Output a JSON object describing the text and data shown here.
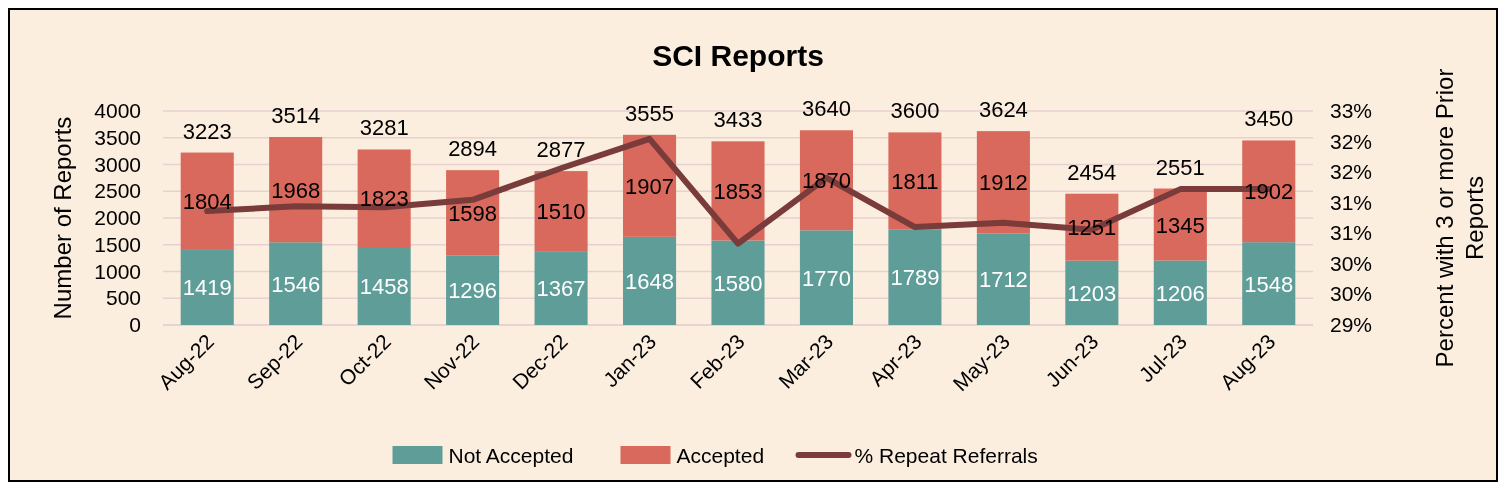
{
  "chart_data": {
    "type": "bar",
    "title": "SCI Reports",
    "ylabel": "Number of Reports",
    "y2label": "Percent with 3 or more Prior Reports",
    "categories": [
      "Aug-22",
      "Sep-22",
      "Oct-22",
      "Nov-22",
      "Dec-22",
      "Jan-23",
      "Feb-23",
      "Mar-23",
      "Apr-23",
      "May-23",
      "Jun-23",
      "Jul-23",
      "Aug-23"
    ],
    "stacked": true,
    "grid": "y",
    "legend": "bottom",
    "ylim": [
      0,
      4000
    ],
    "yticks": [
      0,
      500,
      1000,
      1500,
      2000,
      2500,
      3000,
      3500,
      4000
    ],
    "y2lim": [
      29,
      33
    ],
    "y2ticks": [
      {
        "value": 29,
        "label": "29%"
      },
      {
        "value": 29.571,
        "label": "30%"
      },
      {
        "value": 30.143,
        "label": "30%"
      },
      {
        "value": 30.714,
        "label": "31%"
      },
      {
        "value": 31.286,
        "label": "31%"
      },
      {
        "value": 31.857,
        "label": "32%"
      },
      {
        "value": 32.429,
        "label": "32%"
      },
      {
        "value": 33,
        "label": "33%"
      }
    ],
    "series": [
      {
        "name": "Not Accepted",
        "color": "#5f9e98",
        "values": [
          1419,
          1546,
          1458,
          1296,
          1367,
          1648,
          1580,
          1770,
          1789,
          1712,
          1203,
          1206,
          1548
        ],
        "value_labels": [
          "1419",
          "1546",
          "1458",
          "1296",
          "1367",
          "1648",
          "1580",
          "1770",
          "1789",
          "1712",
          "1203",
          "1206",
          "1548"
        ]
      },
      {
        "name": "Accepted",
        "color": "#d9695c",
        "values": [
          1804,
          1968,
          1823,
          1598,
          1510,
          1907,
          1853,
          1870,
          1811,
          1912,
          1251,
          1345,
          1902
        ],
        "value_labels": [
          "1804",
          "1968",
          "1823",
          "1598",
          "1510",
          "1907",
          "1853",
          "1870",
          "1811",
          "1912",
          "1251",
          "1345",
          "1902"
        ]
      },
      {
        "name": "% Repeat Referrals",
        "type": "line",
        "axis": "y2",
        "color": "#7a3b3b",
        "marker": "none",
        "line_style": "solid",
        "values": [
          31.13,
          31.22,
          31.2,
          31.34,
          31.93,
          32.48,
          30.52,
          31.75,
          30.83,
          30.91,
          30.78,
          31.54,
          31.54
        ]
      }
    ],
    "totals": [
      "3223",
      "3514",
      "3281",
      "2894",
      "2877",
      "3555",
      "3433",
      "3640",
      "3600",
      "3624",
      "2454",
      "2551",
      "3450"
    ]
  }
}
